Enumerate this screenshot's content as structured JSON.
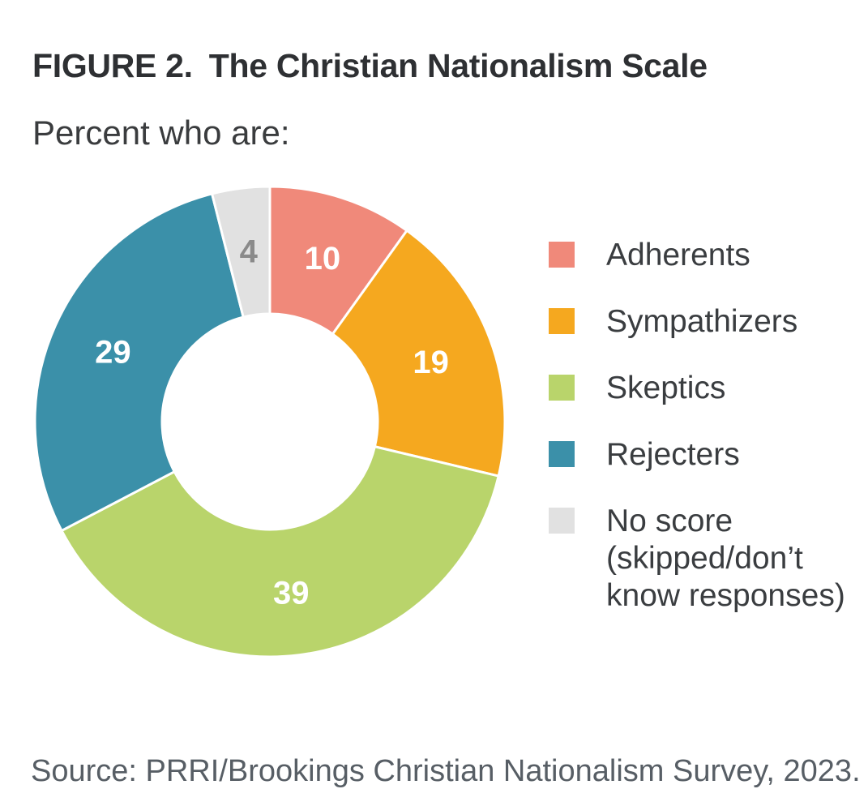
{
  "chart_data": {
    "type": "pie",
    "variant": "donut",
    "figure_label": "FIGURE 2.",
    "title": "The Christian Nationalism Scale",
    "subtitle": "Percent who are:",
    "source": "Source: PRRI/Brookings Christian Nationalism Survey, 2023.",
    "categories": [
      "Adherents",
      "Sympathizers",
      "Skeptics",
      "Rejecters",
      "No score (skipped/don’t know responses)"
    ],
    "values": [
      10,
      19,
      39,
      29,
      4
    ],
    "unit": "percent",
    "colors": [
      "#F0897A",
      "#F5A81F",
      "#B9D46B",
      "#3B90A9",
      "#E1E1E1"
    ],
    "value_label_colors": [
      "#FFFFFF",
      "#FFFFFF",
      "#FFFFFF",
      "#FFFFFF",
      "#8A8A8A"
    ],
    "slice_border_color": "#FFFFFF",
    "start_angle_deg": 0,
    "direction": "clockwise",
    "inner_radius_ratio": 0.459,
    "legend_position": "right",
    "grid": false
  }
}
